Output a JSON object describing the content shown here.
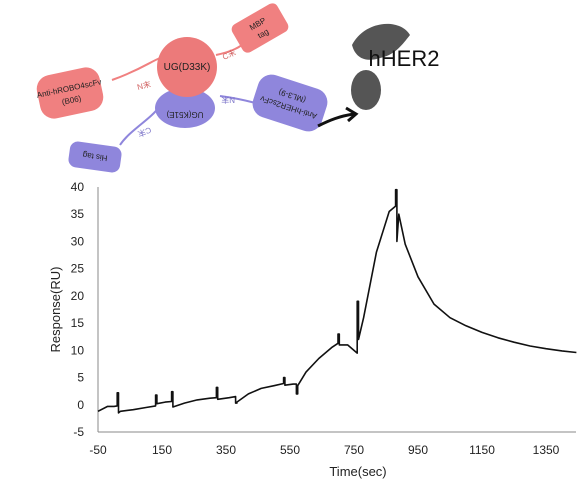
{
  "diagram": {
    "target_label": "hHER2",
    "domains": [
      {
        "name": "anti-hrobo4-scfv-domain",
        "label": "Anti-hROBO4scFv",
        "sublabel": "(B06)",
        "color": "#f08080"
      },
      {
        "name": "ug-d33k-domain",
        "label": "UG(D33K)",
        "sublabel": "",
        "color": "#ec7a7a"
      },
      {
        "name": "mbp-tag-domain",
        "label": "MBP",
        "sublabel": "tag",
        "color": "#f08080"
      },
      {
        "name": "ug-k51e-domain",
        "label": "UG(K51E)",
        "sublabel": "",
        "color": "#8f86dc"
      },
      {
        "name": "anti-hher2-scfv-domain",
        "label": "Anti-hHER2scFv",
        "sublabel": "(ML3-9)",
        "color": "#8f86dc"
      },
      {
        "name": "his-tag-domain",
        "label": "His tag",
        "sublabel": "",
        "color": "#8f86dc"
      }
    ],
    "linker_labels": [
      "N末",
      "C末",
      "N末",
      "C末"
    ],
    "target_color": "#555555"
  },
  "chart_data": {
    "type": "line",
    "title": "",
    "xlabel": "Time(sec)",
    "ylabel": "Response(RU)",
    "xlim": [
      -50,
      1450
    ],
    "ylim": [
      -5,
      40
    ],
    "xticks": [
      "-50",
      "150",
      "350",
      "550",
      "750",
      "950",
      "1150",
      "1350"
    ],
    "yticks": [
      "-5",
      "0",
      "5",
      "10",
      "15",
      "20",
      "25",
      "30",
      "35",
      "40"
    ],
    "grid": false,
    "legend": "none",
    "series": [
      {
        "color": "#111111",
        "x": [
          -50,
          -20,
          0,
          10,
          10,
          14,
          14,
          20,
          60,
          100,
          130,
          130,
          134,
          134,
          160,
          180,
          180,
          184,
          184,
          220,
          260,
          300,
          320,
          320,
          324,
          324,
          360,
          380,
          380,
          384,
          384,
          420,
          460,
          500,
          530,
          530,
          534,
          534,
          560,
          570,
          570,
          574,
          574,
          600,
          640,
          680,
          700,
          700,
          704,
          704,
          730,
          760,
          760,
          764,
          764,
          780,
          820,
          860,
          880,
          880,
          884,
          884,
          890,
          910,
          950,
          1000,
          1050,
          1100,
          1150,
          1200,
          1250,
          1300,
          1350,
          1400,
          1445
        ],
        "y": [
          -1.2,
          -0.3,
          -0.3,
          -0.2,
          2.2,
          2.2,
          -1.5,
          -1.2,
          -0.9,
          -0.5,
          -0.2,
          1.8,
          1.8,
          0.2,
          0.5,
          0.6,
          2.4,
          2.4,
          -0.4,
          0.3,
          0.9,
          1.2,
          1.3,
          3.2,
          3.2,
          1.0,
          1.3,
          1.5,
          0.3,
          0.3,
          0.5,
          2.0,
          3.0,
          3.5,
          3.9,
          5.0,
          5.0,
          3.6,
          3.8,
          3.8,
          2.0,
          2.0,
          3.5,
          6.0,
          8.5,
          10.5,
          11.3,
          13.0,
          13.0,
          11.0,
          11.0,
          9.5,
          19.0,
          19.0,
          12.0,
          16.0,
          28.0,
          35.5,
          36.5,
          39.5,
          39.5,
          30.0,
          35.0,
          29.5,
          23.5,
          18.5,
          16.0,
          14.5,
          13.3,
          12.3,
          11.5,
          10.8,
          10.3,
          9.9,
          9.6
        ]
      }
    ]
  }
}
